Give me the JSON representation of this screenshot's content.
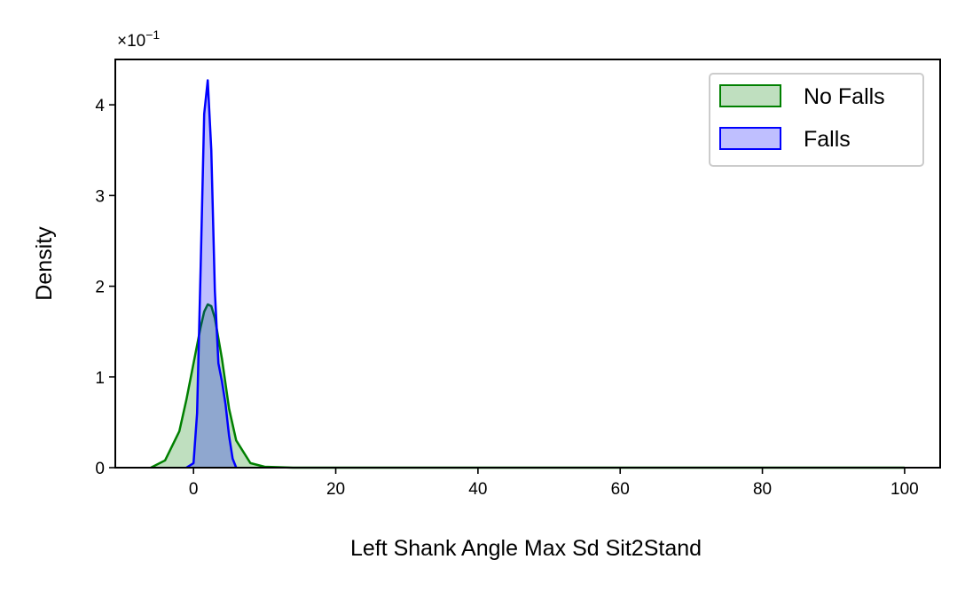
{
  "chart_data": {
    "type": "area",
    "xlabel": "Left Shank Angle Max Sd Sit2Stand",
    "ylabel": "Density",
    "y_multiplier_label": "×10",
    "y_multiplier_exponent": "−1",
    "xlim": [
      -11,
      105
    ],
    "ylim": [
      0,
      4.5
    ],
    "y_scale_factor": 0.1,
    "x_ticks": [
      0,
      20,
      40,
      60,
      80,
      100
    ],
    "x_tick_labels": [
      "0",
      "20",
      "40",
      "60",
      "80",
      "100"
    ],
    "y_ticks": [
      0,
      1,
      2,
      3,
      4
    ],
    "y_tick_labels": [
      "0",
      "1",
      "2",
      "3",
      "4"
    ],
    "legend_position": "top-right",
    "grid": false,
    "series": [
      {
        "name": "No Falls",
        "color": "#008000",
        "fill": "#008000",
        "fill_opacity": 0.25,
        "x": [
          -6,
          -4,
          -2,
          -1,
          0,
          1,
          1.5,
          2,
          2.5,
          3,
          4,
          5,
          6,
          8,
          10,
          14,
          20,
          40,
          60,
          80,
          100
        ],
        "y": [
          0.0,
          0.08,
          0.4,
          0.75,
          1.15,
          1.55,
          1.72,
          1.8,
          1.78,
          1.65,
          1.2,
          0.65,
          0.3,
          0.05,
          0.01,
          0.0,
          0.0,
          0.0,
          0.0,
          0.0,
          0.0
        ]
      },
      {
        "name": "Falls",
        "color": "#0000ff",
        "fill": "#0000ff",
        "fill_opacity": 0.25,
        "x": [
          -1,
          0,
          0.5,
          1,
          1.5,
          2,
          2.5,
          3,
          3.5,
          4,
          4.5,
          5,
          5.5,
          6
        ],
        "y": [
          0.0,
          0.05,
          0.6,
          2.2,
          3.9,
          4.27,
          3.5,
          1.95,
          1.15,
          0.95,
          0.7,
          0.35,
          0.1,
          0.0
        ]
      }
    ]
  }
}
